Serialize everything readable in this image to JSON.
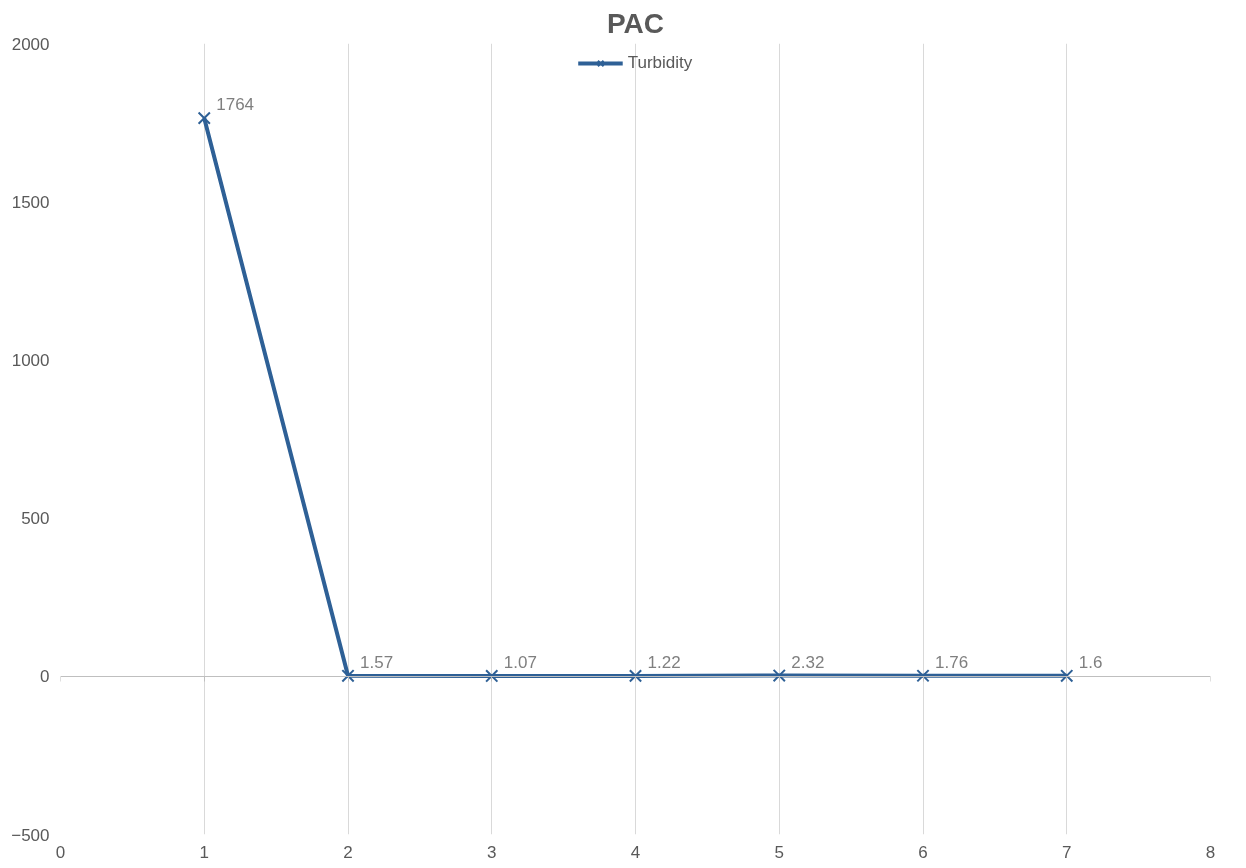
{
  "chart_data": {
    "type": "line",
    "title": "PAC",
    "x": [
      1,
      2,
      3,
      4,
      5,
      6,
      7
    ],
    "series": [
      {
        "name": "Turbidity",
        "color": "#2e6096",
        "values": [
          1764,
          1.57,
          1.07,
          1.22,
          2.32,
          1.76,
          1.6
        ]
      }
    ],
    "xlim": [
      0,
      8
    ],
    "xticks": [
      0,
      1,
      2,
      3,
      4,
      5,
      6,
      7,
      8
    ],
    "ylim": [
      -500,
      2000
    ],
    "yticks": [
      -500,
      0,
      500,
      1000,
      1500,
      2000
    ],
    "grid": "x",
    "legend": "top",
    "marker": "cross",
    "line_style": "solid",
    "data_labels": true
  }
}
